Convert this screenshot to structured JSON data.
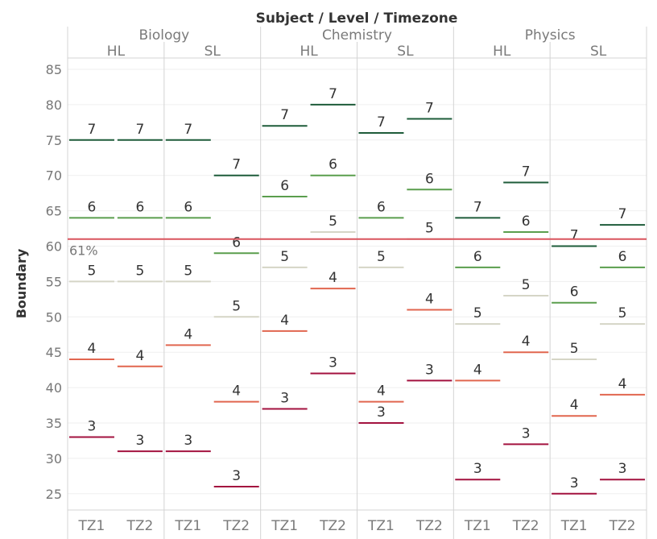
{
  "chart_data": {
    "type": "scatter",
    "title": "Subject / Level / Timezone",
    "ylabel": "Boundary",
    "ylim": [
      22,
      87
    ],
    "yticks": [
      25,
      30,
      35,
      40,
      45,
      50,
      55,
      60,
      65,
      70,
      75,
      80,
      85
    ],
    "grid": true,
    "reference_line": {
      "value": 61,
      "label": "61%",
      "color": "#d9545d"
    },
    "grade_colors": {
      "7": "#1e5c3a",
      "6": "#5a9e4d",
      "5": "#d5d5c6",
      "4": "#e1664f",
      "3": "#a3123f"
    },
    "subjects": [
      {
        "name": "Biology",
        "levels": [
          {
            "name": "HL",
            "timezones": [
              {
                "name": "TZ1",
                "boundaries": [
                  {
                    "grade": "7",
                    "value": 75
                  },
                  {
                    "grade": "6",
                    "value": 64
                  },
                  {
                    "grade": "5",
                    "value": 55
                  },
                  {
                    "grade": "4",
                    "value": 44
                  },
                  {
                    "grade": "3",
                    "value": 33
                  }
                ]
              },
              {
                "name": "TZ2",
                "boundaries": [
                  {
                    "grade": "7",
                    "value": 75
                  },
                  {
                    "grade": "6",
                    "value": 64
                  },
                  {
                    "grade": "5",
                    "value": 55
                  },
                  {
                    "grade": "4",
                    "value": 43
                  },
                  {
                    "grade": "3",
                    "value": 31
                  }
                ]
              }
            ]
          },
          {
            "name": "SL",
            "timezones": [
              {
                "name": "TZ1",
                "boundaries": [
                  {
                    "grade": "7",
                    "value": 75
                  },
                  {
                    "grade": "6",
                    "value": 64
                  },
                  {
                    "grade": "5",
                    "value": 55
                  },
                  {
                    "grade": "4",
                    "value": 46
                  },
                  {
                    "grade": "3",
                    "value": 31
                  }
                ]
              },
              {
                "name": "TZ2",
                "boundaries": [
                  {
                    "grade": "7",
                    "value": 70
                  },
                  {
                    "grade": "6",
                    "value": 59
                  },
                  {
                    "grade": "5",
                    "value": 50
                  },
                  {
                    "grade": "4",
                    "value": 38
                  },
                  {
                    "grade": "3",
                    "value": 26
                  }
                ]
              }
            ]
          }
        ]
      },
      {
        "name": "Chemistry",
        "levels": [
          {
            "name": "HL",
            "timezones": [
              {
                "name": "TZ1",
                "boundaries": [
                  {
                    "grade": "7",
                    "value": 77
                  },
                  {
                    "grade": "6",
                    "value": 67
                  },
                  {
                    "grade": "5",
                    "value": 57
                  },
                  {
                    "grade": "4",
                    "value": 48
                  },
                  {
                    "grade": "3",
                    "value": 37
                  }
                ]
              },
              {
                "name": "TZ2",
                "boundaries": [
                  {
                    "grade": "7",
                    "value": 80
                  },
                  {
                    "grade": "6",
                    "value": 70
                  },
                  {
                    "grade": "5",
                    "value": 62
                  },
                  {
                    "grade": "4",
                    "value": 54
                  },
                  {
                    "grade": "3",
                    "value": 42
                  }
                ]
              }
            ]
          },
          {
            "name": "SL",
            "timezones": [
              {
                "name": "TZ1",
                "boundaries": [
                  {
                    "grade": "7",
                    "value": 76
                  },
                  {
                    "grade": "6",
                    "value": 64
                  },
                  {
                    "grade": "5",
                    "value": 57
                  },
                  {
                    "grade": "4",
                    "value": 38
                  },
                  {
                    "grade": "3",
                    "value": 35
                  }
                ]
              },
              {
                "name": "TZ2",
                "boundaries": [
                  {
                    "grade": "7",
                    "value": 78
                  },
                  {
                    "grade": "6",
                    "value": 68
                  },
                  {
                    "grade": "5",
                    "value": 61
                  },
                  {
                    "grade": "4",
                    "value": 51
                  },
                  {
                    "grade": "3",
                    "value": 41
                  }
                ]
              }
            ]
          }
        ]
      },
      {
        "name": "Physics",
        "levels": [
          {
            "name": "HL",
            "timezones": [
              {
                "name": "TZ1",
                "boundaries": [
                  {
                    "grade": "7",
                    "value": 64
                  },
                  {
                    "grade": "6",
                    "value": 57
                  },
                  {
                    "grade": "5",
                    "value": 49
                  },
                  {
                    "grade": "4",
                    "value": 41
                  },
                  {
                    "grade": "3",
                    "value": 27
                  }
                ]
              },
              {
                "name": "TZ2",
                "boundaries": [
                  {
                    "grade": "7",
                    "value": 69
                  },
                  {
                    "grade": "6",
                    "value": 62
                  },
                  {
                    "grade": "5",
                    "value": 53
                  },
                  {
                    "grade": "4",
                    "value": 45
                  },
                  {
                    "grade": "3",
                    "value": 32
                  }
                ]
              }
            ]
          },
          {
            "name": "SL",
            "timezones": [
              {
                "name": "TZ1",
                "boundaries": [
                  {
                    "grade": "7",
                    "value": 60
                  },
                  {
                    "grade": "6",
                    "value": 52
                  },
                  {
                    "grade": "5",
                    "value": 44
                  },
                  {
                    "grade": "4",
                    "value": 36
                  },
                  {
                    "grade": "3",
                    "value": 25
                  }
                ]
              },
              {
                "name": "TZ2",
                "boundaries": [
                  {
                    "grade": "7",
                    "value": 63
                  },
                  {
                    "grade": "6",
                    "value": 57
                  },
                  {
                    "grade": "5",
                    "value": 49
                  },
                  {
                    "grade": "4",
                    "value": 39
                  },
                  {
                    "grade": "3",
                    "value": 27
                  }
                ]
              }
            ]
          }
        ]
      }
    ]
  }
}
